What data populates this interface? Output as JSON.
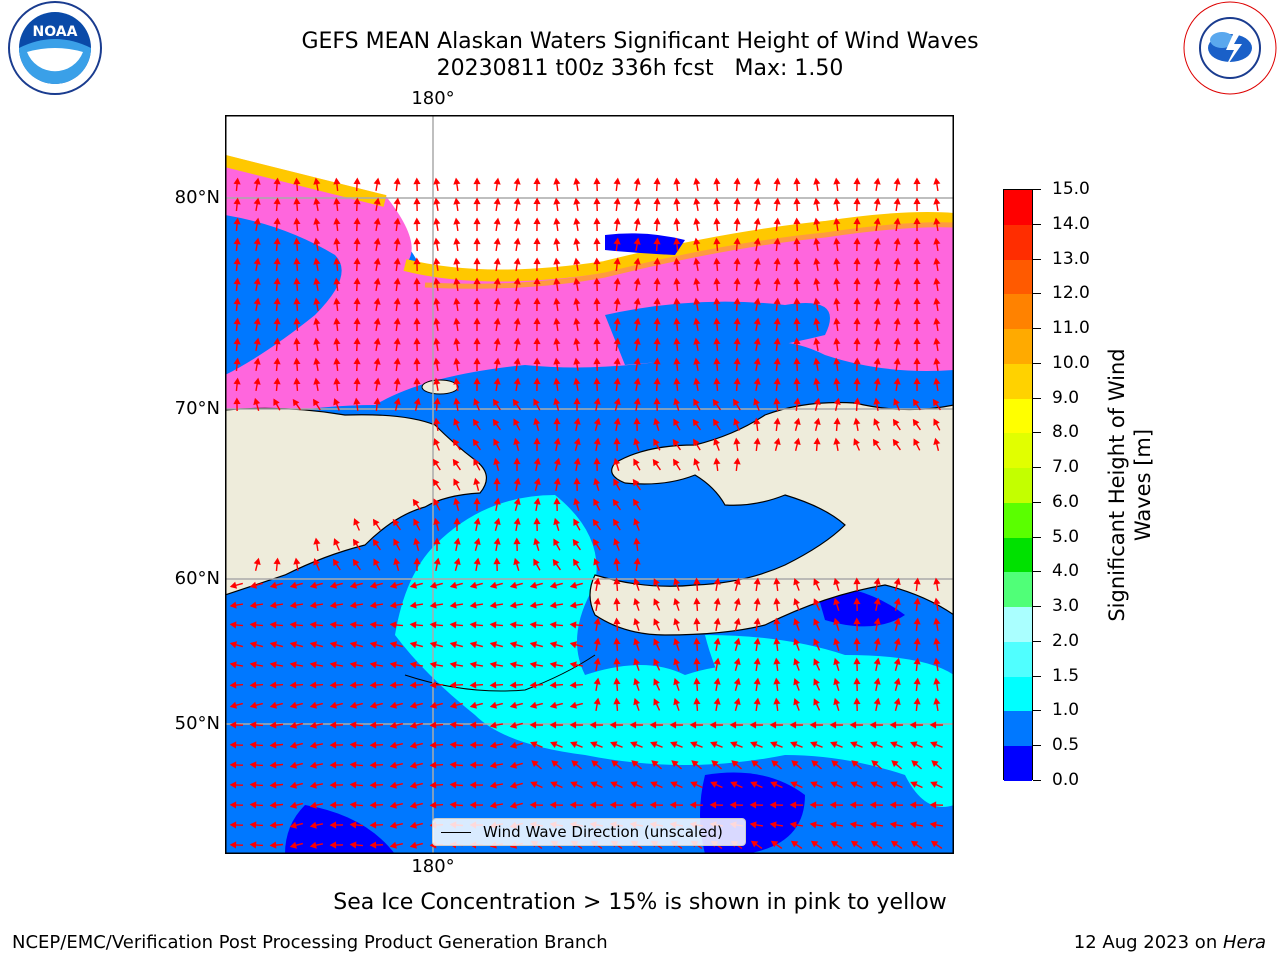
{
  "title": {
    "line1": "GEFS MEAN Alaskan Waters Significant Height of Wind Waves",
    "line2": "20230811 t00z 336h fcst   Max: 1.50"
  },
  "axes": {
    "lon_label_top": "180°",
    "lon_label_bottom": "180°",
    "lat_labels": [
      "80°N",
      "70°N",
      "60°N",
      "50°N"
    ]
  },
  "colorbar": {
    "title": "Significant Height of Wind Waves [m]",
    "ticks": [
      "15.0",
      "14.0",
      "13.0",
      "12.0",
      "11.0",
      "10.0",
      "9.0",
      "8.0",
      "7.0",
      "6.0",
      "5.0",
      "4.0",
      "3.0",
      "2.0",
      "1.5",
      "1.0",
      "0.5",
      "0.0"
    ],
    "colors": [
      "#ff0000",
      "#ff2d00",
      "#ff5a00",
      "#ff8200",
      "#ffaa00",
      "#ffd200",
      "#ffff00",
      "#e1ff00",
      "#c3ff00",
      "#5aff00",
      "#00e100",
      "#50ff78",
      "#aaffff",
      "#50ffff",
      "#00ffff",
      "#0078ff",
      "#0000ff"
    ]
  },
  "legend": {
    "label": "Wind Wave Direction (unscaled)"
  },
  "subtitle": "Sea Ice Concentration > 15% is shown in pink to yellow",
  "footer": {
    "credit": "NCEP/EMC/Verification Post Processing Product Generation Branch",
    "date": "12 Aug 2023 on ",
    "machine": "Hera"
  },
  "logos": {
    "left": "NOAA",
    "right": "NATIONAL WEATHER SERVICE"
  },
  "colors": {
    "land": "#eeecdb",
    "ocean_low": "#0078ff",
    "ocean_calm": "#0000ff",
    "ocean_mid": "#00ffff",
    "ice_pink": "#ff66dd",
    "ice_yellow": "#ffd200",
    "arrow": "#ff0000",
    "grid": "#aaaaaa"
  }
}
